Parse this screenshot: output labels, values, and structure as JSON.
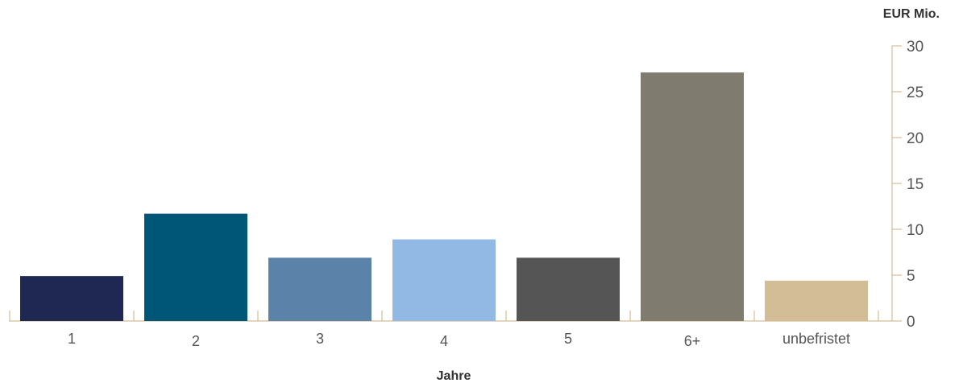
{
  "chart_data": {
    "type": "bar",
    "categories": [
      "1",
      "2",
      "3",
      "4",
      "5",
      "6+",
      "unbefristet"
    ],
    "values": [
      4.9,
      11.7,
      6.9,
      8.9,
      6.9,
      27.1,
      4.4
    ],
    "colors": [
      "#1e2853",
      "#005677",
      "#5b82a8",
      "#91b9e3",
      "#555555",
      "#7f7b6f",
      "#d3bd97"
    ],
    "axis_color": "#d3bd97",
    "yunit": "EUR Mio.",
    "xlabel": "Jahre",
    "ylim": [
      0,
      30
    ],
    "yticks": [
      0,
      5,
      10,
      15,
      20,
      25,
      30
    ],
    "y_axis_position": "right",
    "grid": false,
    "legend": "none"
  }
}
